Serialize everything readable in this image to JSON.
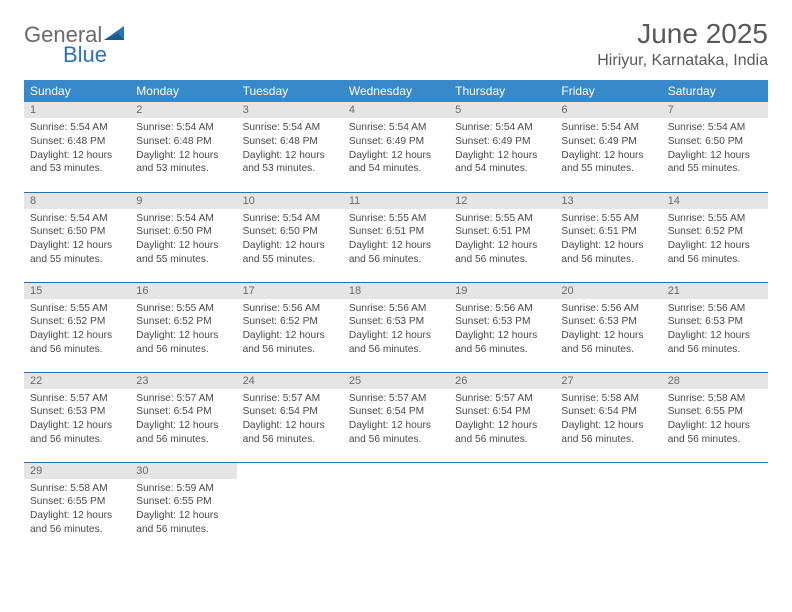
{
  "logo": {
    "text_left": "General",
    "text_right": "Blue"
  },
  "title": "June 2025",
  "location": "Hiriyur, Karnataka, India",
  "colors": {
    "header_bg": "#3789ca",
    "header_fg": "#ffffff",
    "daynum_bg": "#e5e5e5",
    "rule": "#2f6ea8",
    "text": "#4a4a4a",
    "title_color": "#595959"
  },
  "weekdays": [
    "Sunday",
    "Monday",
    "Tuesday",
    "Wednesday",
    "Thursday",
    "Friday",
    "Saturday"
  ],
  "weeks": [
    [
      {
        "n": "1",
        "sunrise": "5:54 AM",
        "sunset": "6:48 PM",
        "dl": "12 hours and 53 minutes."
      },
      {
        "n": "2",
        "sunrise": "5:54 AM",
        "sunset": "6:48 PM",
        "dl": "12 hours and 53 minutes."
      },
      {
        "n": "3",
        "sunrise": "5:54 AM",
        "sunset": "6:48 PM",
        "dl": "12 hours and 53 minutes."
      },
      {
        "n": "4",
        "sunrise": "5:54 AM",
        "sunset": "6:49 PM",
        "dl": "12 hours and 54 minutes."
      },
      {
        "n": "5",
        "sunrise": "5:54 AM",
        "sunset": "6:49 PM",
        "dl": "12 hours and 54 minutes."
      },
      {
        "n": "6",
        "sunrise": "5:54 AM",
        "sunset": "6:49 PM",
        "dl": "12 hours and 55 minutes."
      },
      {
        "n": "7",
        "sunrise": "5:54 AM",
        "sunset": "6:50 PM",
        "dl": "12 hours and 55 minutes."
      }
    ],
    [
      {
        "n": "8",
        "sunrise": "5:54 AM",
        "sunset": "6:50 PM",
        "dl": "12 hours and 55 minutes."
      },
      {
        "n": "9",
        "sunrise": "5:54 AM",
        "sunset": "6:50 PM",
        "dl": "12 hours and 55 minutes."
      },
      {
        "n": "10",
        "sunrise": "5:54 AM",
        "sunset": "6:50 PM",
        "dl": "12 hours and 55 minutes."
      },
      {
        "n": "11",
        "sunrise": "5:55 AM",
        "sunset": "6:51 PM",
        "dl": "12 hours and 56 minutes."
      },
      {
        "n": "12",
        "sunrise": "5:55 AM",
        "sunset": "6:51 PM",
        "dl": "12 hours and 56 minutes."
      },
      {
        "n": "13",
        "sunrise": "5:55 AM",
        "sunset": "6:51 PM",
        "dl": "12 hours and 56 minutes."
      },
      {
        "n": "14",
        "sunrise": "5:55 AM",
        "sunset": "6:52 PM",
        "dl": "12 hours and 56 minutes."
      }
    ],
    [
      {
        "n": "15",
        "sunrise": "5:55 AM",
        "sunset": "6:52 PM",
        "dl": "12 hours and 56 minutes."
      },
      {
        "n": "16",
        "sunrise": "5:55 AM",
        "sunset": "6:52 PM",
        "dl": "12 hours and 56 minutes."
      },
      {
        "n": "17",
        "sunrise": "5:56 AM",
        "sunset": "6:52 PM",
        "dl": "12 hours and 56 minutes."
      },
      {
        "n": "18",
        "sunrise": "5:56 AM",
        "sunset": "6:53 PM",
        "dl": "12 hours and 56 minutes."
      },
      {
        "n": "19",
        "sunrise": "5:56 AM",
        "sunset": "6:53 PM",
        "dl": "12 hours and 56 minutes."
      },
      {
        "n": "20",
        "sunrise": "5:56 AM",
        "sunset": "6:53 PM",
        "dl": "12 hours and 56 minutes."
      },
      {
        "n": "21",
        "sunrise": "5:56 AM",
        "sunset": "6:53 PM",
        "dl": "12 hours and 56 minutes."
      }
    ],
    [
      {
        "n": "22",
        "sunrise": "5:57 AM",
        "sunset": "6:53 PM",
        "dl": "12 hours and 56 minutes."
      },
      {
        "n": "23",
        "sunrise": "5:57 AM",
        "sunset": "6:54 PM",
        "dl": "12 hours and 56 minutes."
      },
      {
        "n": "24",
        "sunrise": "5:57 AM",
        "sunset": "6:54 PM",
        "dl": "12 hours and 56 minutes."
      },
      {
        "n": "25",
        "sunrise": "5:57 AM",
        "sunset": "6:54 PM",
        "dl": "12 hours and 56 minutes."
      },
      {
        "n": "26",
        "sunrise": "5:57 AM",
        "sunset": "6:54 PM",
        "dl": "12 hours and 56 minutes."
      },
      {
        "n": "27",
        "sunrise": "5:58 AM",
        "sunset": "6:54 PM",
        "dl": "12 hours and 56 minutes."
      },
      {
        "n": "28",
        "sunrise": "5:58 AM",
        "sunset": "6:55 PM",
        "dl": "12 hours and 56 minutes."
      }
    ],
    [
      {
        "n": "29",
        "sunrise": "5:58 AM",
        "sunset": "6:55 PM",
        "dl": "12 hours and 56 minutes."
      },
      {
        "n": "30",
        "sunrise": "5:59 AM",
        "sunset": "6:55 PM",
        "dl": "12 hours and 56 minutes."
      },
      null,
      null,
      null,
      null,
      null
    ]
  ],
  "labels": {
    "sunrise": "Sunrise: ",
    "sunset": "Sunset: ",
    "daylight": "Daylight: "
  }
}
